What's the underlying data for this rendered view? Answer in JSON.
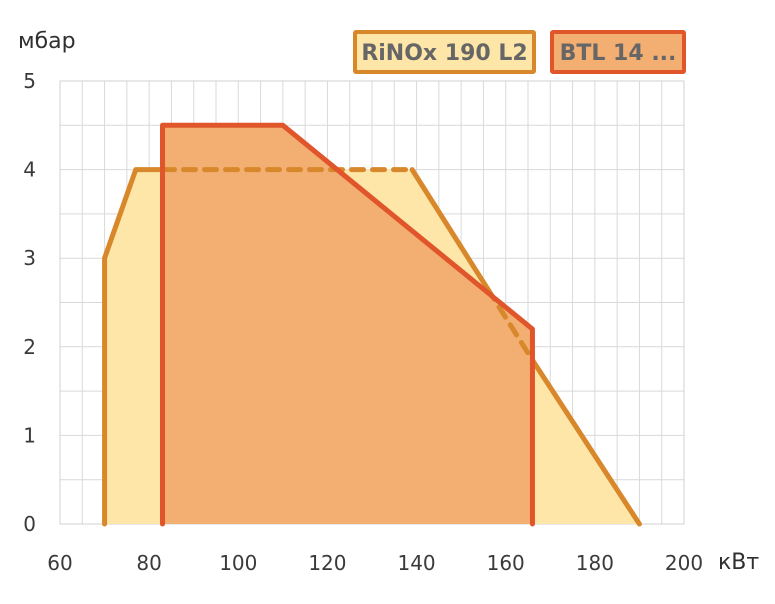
{
  "chart_data": {
    "type": "area",
    "xlabel": "кВт",
    "ylabel": "мбар",
    "xlim": [
      60,
      200
    ],
    "ylim": [
      0,
      5
    ],
    "x_ticks": [
      60,
      80,
      100,
      120,
      140,
      160,
      180,
      200
    ],
    "y_ticks": [
      0,
      1,
      2,
      3,
      4,
      5
    ],
    "x_minor_step": 5,
    "y_minor_step": 0.5,
    "grid": true,
    "legend_position": "top-right",
    "series": [
      {
        "name": "RiNOx 190 L2",
        "fill": "#fde6a8",
        "stroke": "#d8872a",
        "points": [
          [
            70,
            0
          ],
          [
            70,
            3
          ],
          [
            77,
            4
          ],
          [
            139,
            4
          ],
          [
            166,
            1.85
          ],
          [
            190,
            0
          ]
        ]
      },
      {
        "name": "BTL 14 ...",
        "fill": "#f3ae72",
        "stroke": "#e0552a",
        "points": [
          [
            83,
            0
          ],
          [
            83,
            4.5
          ],
          [
            110,
            4.5
          ],
          [
            166,
            2.2
          ],
          [
            166,
            0
          ]
        ]
      }
    ],
    "hidden_boundary_dashes": [
      {
        "series": 0,
        "points": [
          [
            83,
            4
          ],
          [
            139,
            4
          ]
        ],
        "note_visible": false
      },
      {
        "series": 0,
        "points": [
          [
            156,
            2.65
          ],
          [
            166,
            1.85
          ]
        ],
        "note_visible": false
      }
    ]
  }
}
